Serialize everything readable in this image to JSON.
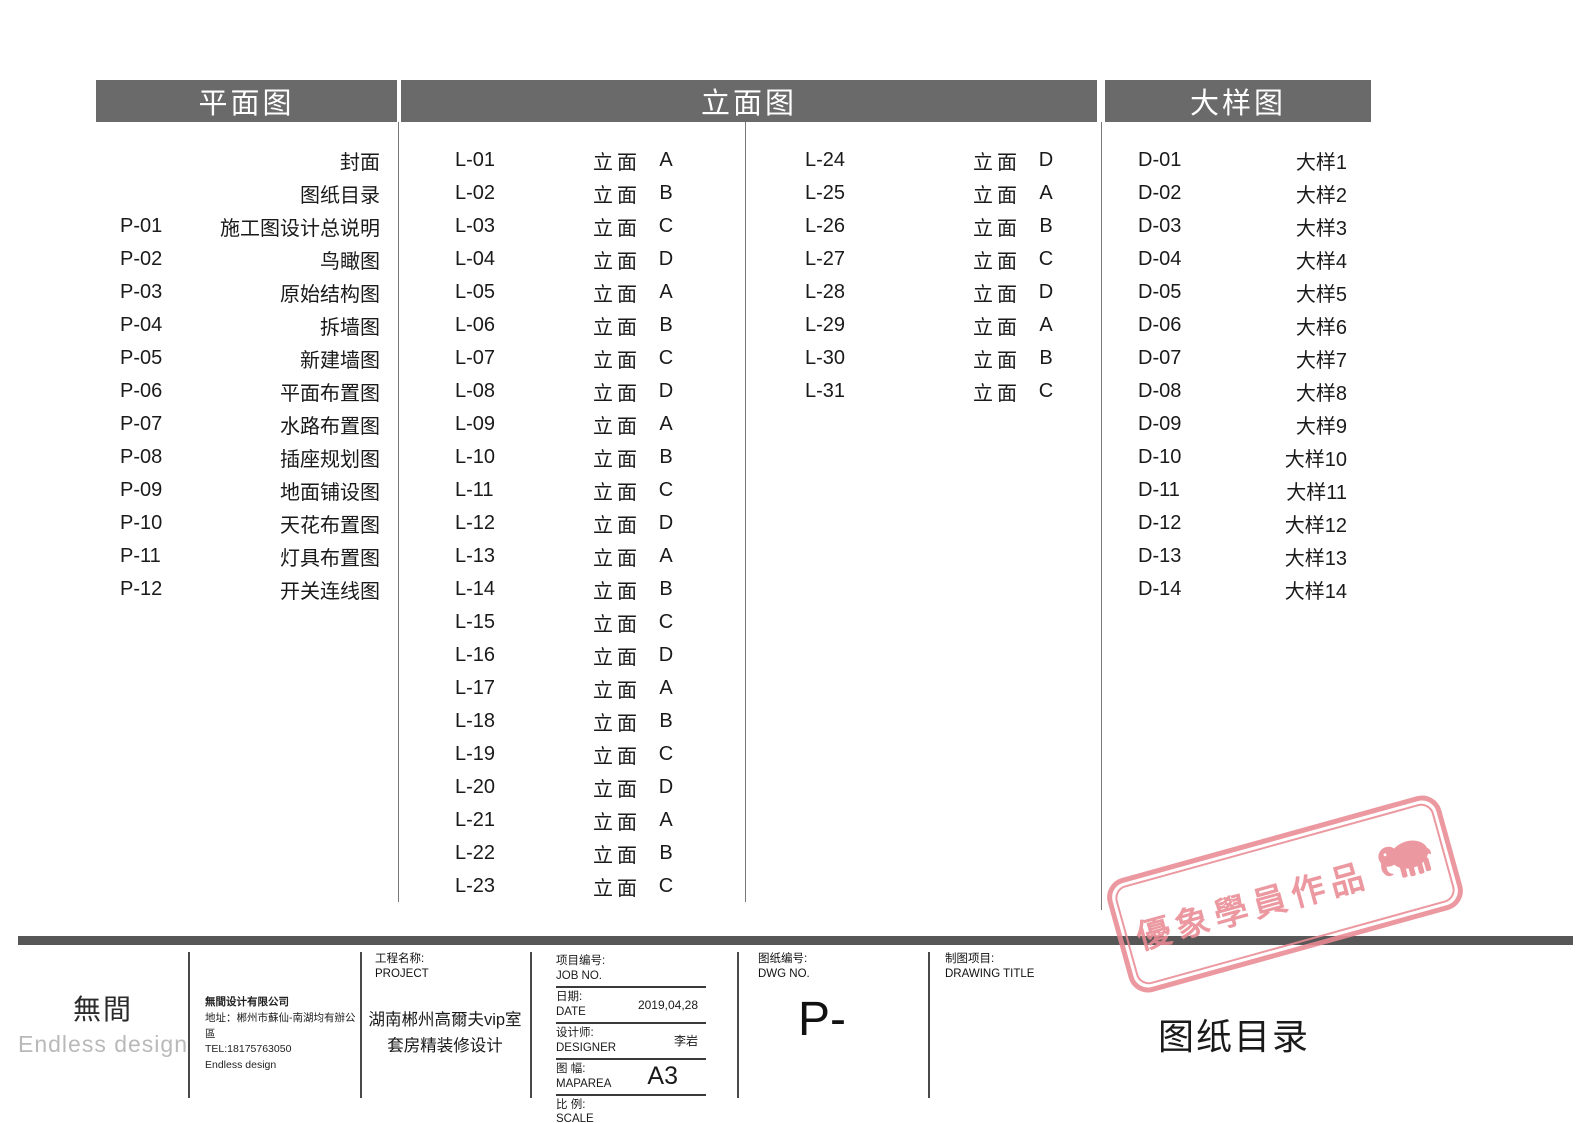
{
  "page": {
    "background": "#ffffff",
    "band_gray": "#6a6a6a",
    "stamp_pink": "#ea8a93"
  },
  "headers": {
    "plans": "平面图",
    "elevations": "立面图",
    "details": "大样图"
  },
  "plans": {
    "rows": [
      {
        "no": "",
        "title": "封面"
      },
      {
        "no": "",
        "title": "图纸目录"
      },
      {
        "no": "P-01",
        "title": "施工图设计总说明"
      },
      {
        "no": "P-02",
        "title": "鸟瞰图"
      },
      {
        "no": "P-03",
        "title": "原始结构图"
      },
      {
        "no": "P-04",
        "title": "拆墙图"
      },
      {
        "no": "P-05",
        "title": "新建墙图"
      },
      {
        "no": "P-06",
        "title": "平面布置图"
      },
      {
        "no": "P-07",
        "title": "水路布置图"
      },
      {
        "no": "P-08",
        "title": "插座规划图"
      },
      {
        "no": "P-09",
        "title": "地面铺设图"
      },
      {
        "no": "P-10",
        "title": "天花布置图"
      },
      {
        "no": "P-11",
        "title": "灯具布置图"
      },
      {
        "no": "P-12",
        "title": "开关连线图"
      }
    ]
  },
  "elevations": {
    "label": "立面",
    "col1": [
      {
        "no": "L-01",
        "letter": "A"
      },
      {
        "no": "L-02",
        "letter": "B"
      },
      {
        "no": "L-03",
        "letter": "C"
      },
      {
        "no": "L-04",
        "letter": "D"
      },
      {
        "no": "L-05",
        "letter": "A"
      },
      {
        "no": "L-06",
        "letter": "B"
      },
      {
        "no": "L-07",
        "letter": "C"
      },
      {
        "no": "L-08",
        "letter": "D"
      },
      {
        "no": "L-09",
        "letter": "A"
      },
      {
        "no": "L-10",
        "letter": "B"
      },
      {
        "no": "L-11",
        "letter": "C"
      },
      {
        "no": "L-12",
        "letter": "D"
      },
      {
        "no": "L-13",
        "letter": "A"
      },
      {
        "no": "L-14",
        "letter": "B"
      },
      {
        "no": "L-15",
        "letter": "C"
      },
      {
        "no": "L-16",
        "letter": "D"
      },
      {
        "no": "L-17",
        "letter": "A"
      },
      {
        "no": "L-18",
        "letter": "B"
      },
      {
        "no": "L-19",
        "letter": "C"
      },
      {
        "no": "L-20",
        "letter": "D"
      },
      {
        "no": "L-21",
        "letter": "A"
      },
      {
        "no": "L-22",
        "letter": "B"
      },
      {
        "no": "L-23",
        "letter": "C"
      }
    ],
    "col2": [
      {
        "no": "L-24",
        "letter": "D"
      },
      {
        "no": "L-25",
        "letter": "A"
      },
      {
        "no": "L-26",
        "letter": "B"
      },
      {
        "no": "L-27",
        "letter": "C"
      },
      {
        "no": "L-28",
        "letter": "D"
      },
      {
        "no": "L-29",
        "letter": "A"
      },
      {
        "no": "L-30",
        "letter": "B"
      },
      {
        "no": "L-31",
        "letter": "C"
      }
    ]
  },
  "details": {
    "rows": [
      {
        "no": "D-01",
        "title": "大样1"
      },
      {
        "no": "D-02",
        "title": "大样2"
      },
      {
        "no": "D-03",
        "title": "大样3"
      },
      {
        "no": "D-04",
        "title": "大样4"
      },
      {
        "no": "D-05",
        "title": "大样5"
      },
      {
        "no": "D-06",
        "title": "大样6"
      },
      {
        "no": "D-07",
        "title": "大样7"
      },
      {
        "no": "D-08",
        "title": "大样8"
      },
      {
        "no": "D-09",
        "title": "大样9"
      },
      {
        "no": "D-10",
        "title": "大样10"
      },
      {
        "no": "D-11",
        "title": "大样11"
      },
      {
        "no": "D-12",
        "title": "大样12"
      },
      {
        "no": "D-13",
        "title": "大样13"
      },
      {
        "no": "D-14",
        "title": "大样14"
      }
    ]
  },
  "titleblock": {
    "logo": {
      "zh": "無間",
      "en": "Endless design"
    },
    "company": {
      "lines": [
        "無間设计有限公司",
        "地址：郴州市蘇仙-南湖均有辦公區",
        "TEL:18175763050",
        "Endless design"
      ]
    },
    "project": {
      "label_zh": "工程名称:",
      "label_en": "PROJECT",
      "name_line1": "湖南郴州高爾夫vip室",
      "name_line2": "套房精装修设计"
    },
    "meta": {
      "job": {
        "zh": "项目编号:",
        "en": "JOB NO.",
        "value": ""
      },
      "date": {
        "zh": "日期:",
        "en": "DATE",
        "value": "2019,04,28"
      },
      "designer": {
        "zh": "设计师:",
        "en": "DESIGNER",
        "value": "李岩"
      },
      "size": {
        "zh": "图 幅:",
        "en": "MAPAREA",
        "value": "A3"
      },
      "scale": {
        "zh": "比 例:",
        "en": "SCALE",
        "value": ""
      }
    },
    "dwg": {
      "zh": "图纸编号:",
      "en": "DWG NO.",
      "value": "P-"
    },
    "drawing_title": {
      "zh": "制图项目:",
      "en": "DRAWING TITLE",
      "value": "图纸目录"
    }
  },
  "stamp": {
    "text": "優象學員作品",
    "icon": "elephant-icon"
  }
}
